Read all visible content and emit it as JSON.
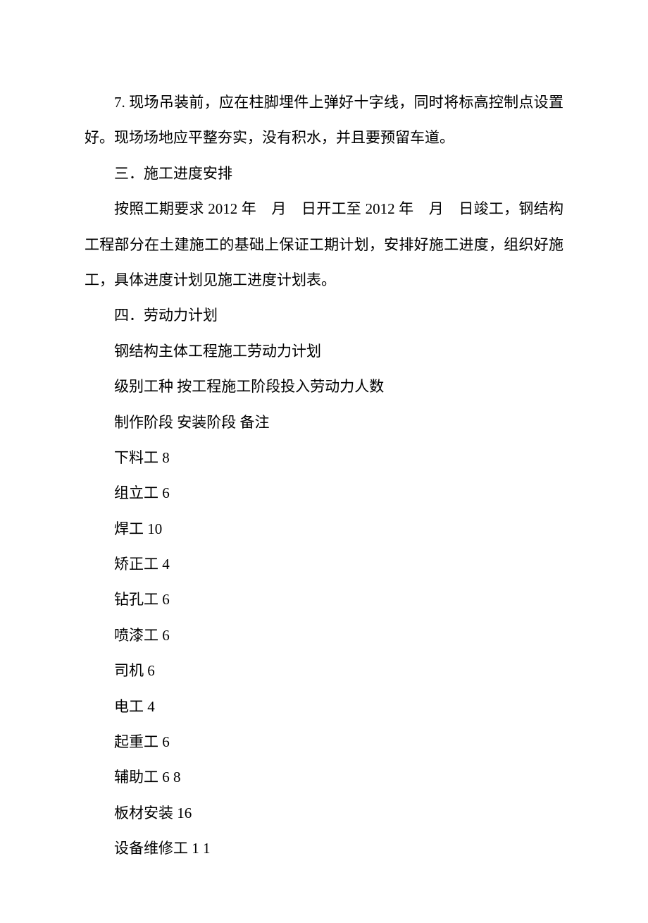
{
  "paragraphs": {
    "p1_part1": "7. 现场吊装前，应在柱脚埋件上弹好十字线，同时将标高控制点设置好。现场场地应平整夯实，没有积水，并且要预留车道。",
    "p2": "三．施工进度安排",
    "p3": "按照工期要求 2012 年　月　日开工至 2012 年　月　日竣工，钢结构工程部分在土建施工的基础上保证工期计划，安排好施工进度，组织好施工，具体进度计划见施工进度计划表。",
    "p4": "四．劳动力计划",
    "p5": "钢结构主体工程施工劳动力计划",
    "p6": " 级别工种 按工程施工阶段投入劳动力人数",
    "p7": "制作阶段 安装阶段 备注"
  },
  "labor": {
    "r1": {
      "type": "下料工",
      "count": "8"
    },
    "r2": {
      "type": "组立工",
      "count": "6"
    },
    "r3": {
      "type": "焊工",
      "count": "10"
    },
    "r4": {
      "type": "矫正工",
      "count": "4"
    },
    "r5": {
      "type": "钻孔工",
      "count": "6"
    },
    "r6": {
      "type": "喷漆工",
      "count": "6"
    },
    "r7": {
      "type": "司机",
      "count": "6"
    },
    "r8": {
      "type": "电工",
      "count": "4"
    },
    "r9": {
      "type": "起重工",
      "count": "6"
    },
    "r10": {
      "type": "辅助工",
      "count": "6 8"
    },
    "r11": {
      "type": "板材安装",
      "count": "16"
    },
    "r12": {
      "type": "设备维修工",
      "count": "1 1"
    }
  }
}
